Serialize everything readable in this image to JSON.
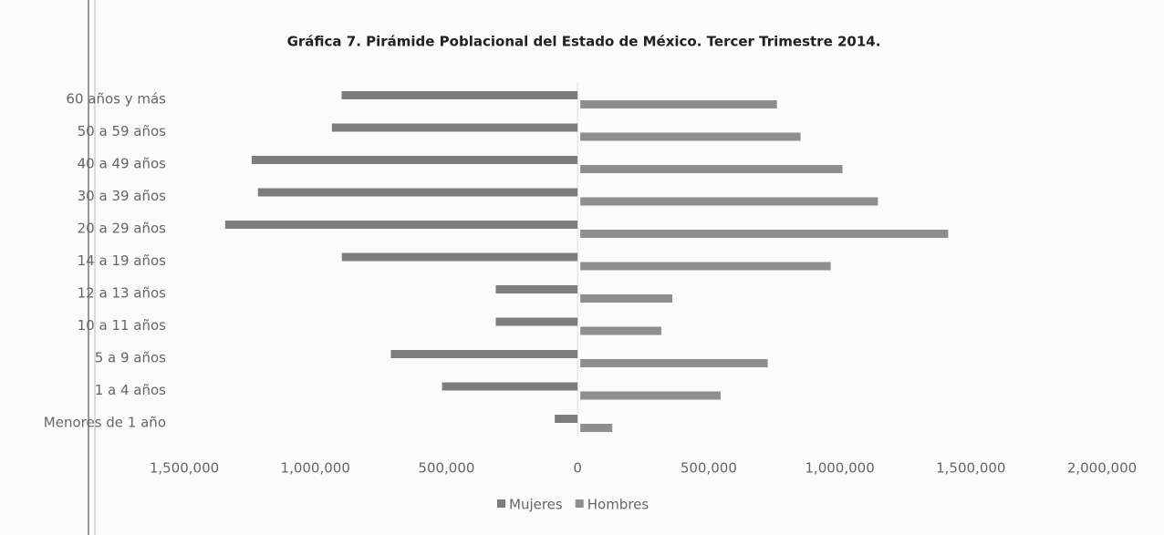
{
  "chart_data": {
    "type": "pyramid",
    "title": "Gráfica 7. Pirámide Poblacional  del Estado de México. Tercer Trimestre 2014.",
    "categories": [
      "60 años y más",
      "50 a 59 años",
      "40 a 49 años",
      "30 a 39 años",
      "20 a 29 años",
      "14 a 19 años",
      "12 a 13 años",
      "10 a 11 años",
      "5 a 9 años",
      "1 a 4 años",
      "Menores de 1 año"
    ],
    "series": [
      {
        "name": "Mujeres",
        "color": "#7d7d7d",
        "values": [
          -900000,
          -937000,
          -1243000,
          -1219000,
          -1344000,
          -899000,
          -312000,
          -312000,
          -712000,
          -517000,
          -87000
        ]
      },
      {
        "name": "Hombres",
        "color": "#8e8e8e",
        "values": [
          750000,
          840000,
          1000000,
          1135000,
          1403000,
          955000,
          351000,
          309000,
          715000,
          535000,
          122000
        ]
      }
    ],
    "xlim": [
      -1500000,
      2000000
    ],
    "xticks": [
      {
        "value": -1500000,
        "label": "1,500,000"
      },
      {
        "value": -1000000,
        "label": "1,000,000"
      },
      {
        "value": -500000,
        "label": "500,000"
      },
      0,
      {
        "value": 500000,
        "label": "500,000"
      },
      {
        "value": 1000000,
        "label": "1,000,000"
      },
      {
        "value": 1500000,
        "label": "1,500,000"
      },
      {
        "value": 2000000,
        "label": "2,000,000"
      }
    ],
    "legend": "bottom"
  }
}
